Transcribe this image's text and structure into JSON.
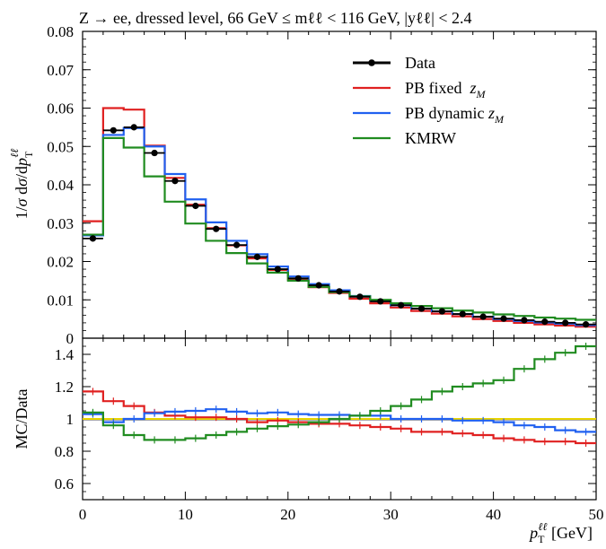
{
  "title": "Z → ee, dressed level, 66 GeV ≤ mℓℓ < 116 GeV, |yℓℓ| < 2.4",
  "chart_data": [
    {
      "type": "line",
      "panel": "main",
      "ylabel": "1/σ dσ/dp_T^ℓℓ",
      "xlim": [
        0,
        50
      ],
      "ylim": [
        0,
        0.08
      ],
      "yticks": [
        "0",
        "0.01",
        "0.02",
        "0.03",
        "0.04",
        "0.05",
        "0.06",
        "0.07",
        "0.08"
      ],
      "x_edges": [
        0,
        2,
        4,
        6,
        8,
        10,
        12,
        14,
        16,
        18,
        20,
        22,
        24,
        26,
        28,
        30,
        32,
        34,
        36,
        38,
        40,
        42,
        44,
        46,
        48,
        50
      ],
      "series": [
        {
          "name": "Data",
          "color": "#000000",
          "style": "points",
          "values": [
            0.026,
            0.0542,
            0.055,
            0.0483,
            0.041,
            0.0345,
            0.0285,
            0.0243,
            0.0212,
            0.018,
            0.0156,
            0.0138,
            0.0122,
            0.0108,
            0.0096,
            0.0086,
            0.0077,
            0.007,
            0.0063,
            0.0056,
            0.0051,
            0.0047,
            0.0043,
            0.004,
            0.0036
          ]
        },
        {
          "name": "PB fixed z_M",
          "color": "#e02020",
          "style": "step",
          "values": [
            0.0305,
            0.06,
            0.0596,
            0.0502,
            0.0418,
            0.0348,
            0.0287,
            0.0242,
            0.0208,
            0.0178,
            0.0153,
            0.0133,
            0.0118,
            0.0103,
            0.0091,
            0.008,
            0.0071,
            0.0064,
            0.0057,
            0.005,
            0.0045,
            0.004,
            0.0036,
            0.0033,
            0.003
          ]
        },
        {
          "name": "PB dynamic z_M",
          "color": "#2060f0",
          "style": "step",
          "values": [
            0.0268,
            0.053,
            0.0548,
            0.05,
            0.0428,
            0.0362,
            0.0302,
            0.0254,
            0.0219,
            0.0187,
            0.0161,
            0.0141,
            0.0125,
            0.011,
            0.0098,
            0.0086,
            0.0077,
            0.007,
            0.0063,
            0.0056,
            0.005,
            0.0045,
            0.0041,
            0.0038,
            0.0034
          ]
        },
        {
          "name": "KMRW",
          "color": "#208c20",
          "style": "step",
          "values": [
            0.027,
            0.0522,
            0.0497,
            0.0422,
            0.0356,
            0.0299,
            0.0254,
            0.0222,
            0.0195,
            0.0171,
            0.015,
            0.0134,
            0.012,
            0.0109,
            0.01,
            0.0091,
            0.0084,
            0.0078,
            0.0072,
            0.0067,
            0.0062,
            0.0058,
            0.0054,
            0.0051,
            0.0048
          ]
        }
      ],
      "legend": [
        "Data",
        "PB fixed z_M",
        "PB dynamic z_M",
        "KMRW"
      ],
      "legend_position": "top-right"
    },
    {
      "type": "line",
      "panel": "ratio",
      "xlabel": "p_T^ℓℓ [GeV]",
      "ylabel": "MC/Data",
      "xlim": [
        0,
        50
      ],
      "ylim": [
        0.5,
        1.5
      ],
      "xticks": [
        "0",
        "10",
        "20",
        "30",
        "40",
        "50"
      ],
      "yticks": [
        "0.6",
        "0.8",
        "1",
        "1.2",
        "1.4"
      ],
      "reference_line": {
        "value": 1.0,
        "color": "#e8d400"
      },
      "x_edges": [
        0,
        2,
        4,
        6,
        8,
        10,
        12,
        14,
        16,
        18,
        20,
        22,
        24,
        26,
        28,
        30,
        32,
        34,
        36,
        38,
        40,
        42,
        44,
        46,
        48,
        50
      ],
      "series": [
        {
          "name": "PB fixed z_M",
          "color": "#e02020",
          "values": [
            1.17,
            1.11,
            1.08,
            1.04,
            1.02,
            1.01,
            1.01,
            1.0,
            0.98,
            0.99,
            0.98,
            0.97,
            0.97,
            0.96,
            0.95,
            0.94,
            0.92,
            0.92,
            0.91,
            0.9,
            0.88,
            0.87,
            0.86,
            0.86,
            0.85
          ]
        },
        {
          "name": "PB dynamic z_M",
          "color": "#2060f0",
          "values": [
            1.03,
            0.98,
            1.0,
            1.035,
            1.045,
            1.05,
            1.06,
            1.045,
            1.035,
            1.04,
            1.03,
            1.025,
            1.025,
            1.02,
            1.02,
            1.0,
            1.0,
            1.0,
            0.99,
            0.99,
            0.98,
            0.96,
            0.95,
            0.93,
            0.92
          ]
        },
        {
          "name": "KMRW",
          "color": "#208c20",
          "values": [
            1.04,
            0.96,
            0.9,
            0.87,
            0.87,
            0.88,
            0.9,
            0.92,
            0.94,
            0.955,
            0.965,
            0.98,
            1.0,
            1.02,
            1.05,
            1.08,
            1.12,
            1.17,
            1.2,
            1.22,
            1.24,
            1.31,
            1.37,
            1.41,
            1.45
          ]
        }
      ]
    }
  ]
}
